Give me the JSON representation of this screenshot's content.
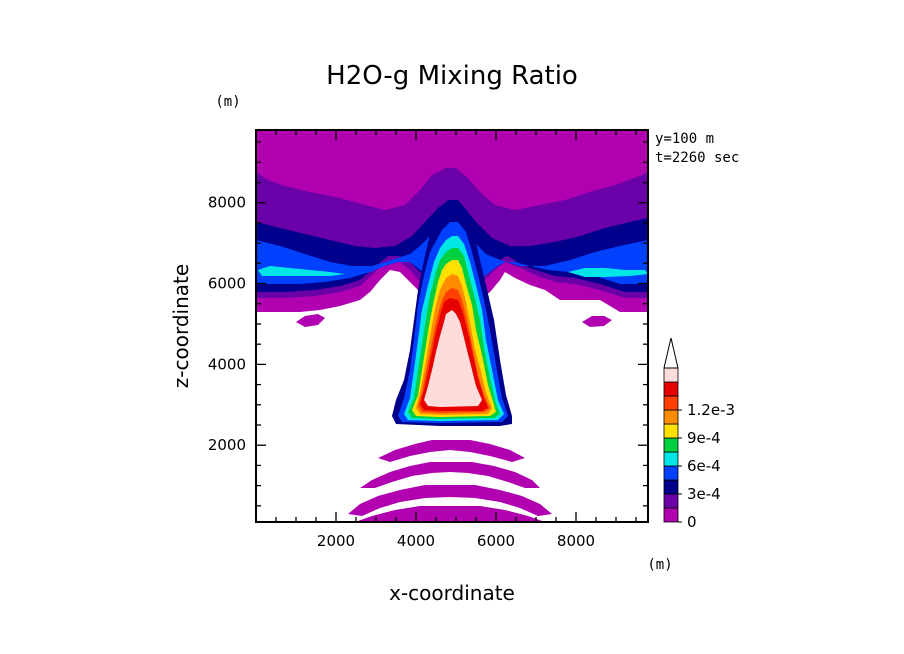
{
  "chart_data": {
    "type": "heatmap",
    "title": "H2O-g Mixing Ratio",
    "xlabel": "x-coordinate",
    "ylabel": "z-coordinate",
    "x_unit": "(m)",
    "y_unit": "(m)",
    "info": [
      "y=100 m",
      "t=2260 sec"
    ],
    "xlim": [
      0,
      9800
    ],
    "ylim": [
      100,
      9800
    ],
    "x_ticks": [
      2000,
      4000,
      6000,
      8000
    ],
    "y_ticks": [
      2000,
      4000,
      6000,
      8000
    ],
    "colorbar": {
      "levels": [
        "0",
        "1.5e-4",
        "3e-4",
        "4.5e-4",
        "6e-4",
        "7.5e-4",
        "9e-4",
        "1.05e-3",
        "1.2e-3"
      ],
      "tick_labels": [
        "0",
        "3e-4",
        "6e-4",
        "9e-4",
        "1.2e-3"
      ],
      "colors": [
        "#b000b0",
        "#6a00a8",
        "#00008c",
        "#0040ff",
        "#00e6e6",
        "#00d040",
        "#ffe000",
        "#ff8c00",
        "#ff4000",
        "#e60000",
        "#ffdcdc"
      ],
      "extend": "max"
    }
  }
}
